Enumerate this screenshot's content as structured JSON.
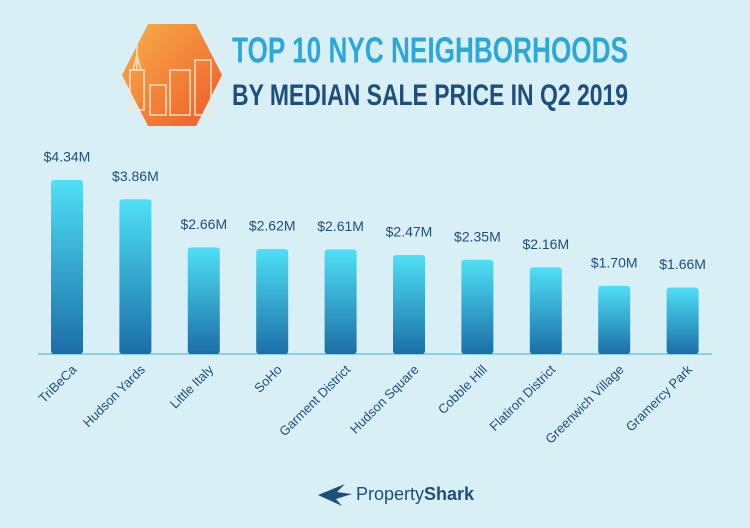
{
  "chart_data": {
    "type": "bar",
    "title": [
      "TOP 10 NYC NEIGHBORHOODS",
      "BY MEDIAN SALE PRICE IN Q2 2019"
    ],
    "categories": [
      "TriBeCa",
      "Hudson Yards",
      "Little Italy",
      "SoHo",
      "Garment District",
      "Hudson Square",
      "Cobble Hill",
      "Flatiron District",
      "Greenwich Village",
      "Gramercy Park"
    ],
    "values": [
      4.34,
      3.86,
      2.66,
      2.62,
      2.61,
      2.47,
      2.35,
      2.16,
      1.7,
      1.66
    ],
    "value_labels": [
      "$4.34M",
      "$3.86M",
      "$2.66M",
      "$2.62M",
      "$2.61M",
      "$2.47M",
      "$2.35M",
      "$2.16M",
      "$1.70M",
      "$1.66M"
    ],
    "color": [
      "#4fe0f6",
      "#1b6ea7"
    ]
  },
  "brand": [
    "Property",
    "Shark"
  ]
}
